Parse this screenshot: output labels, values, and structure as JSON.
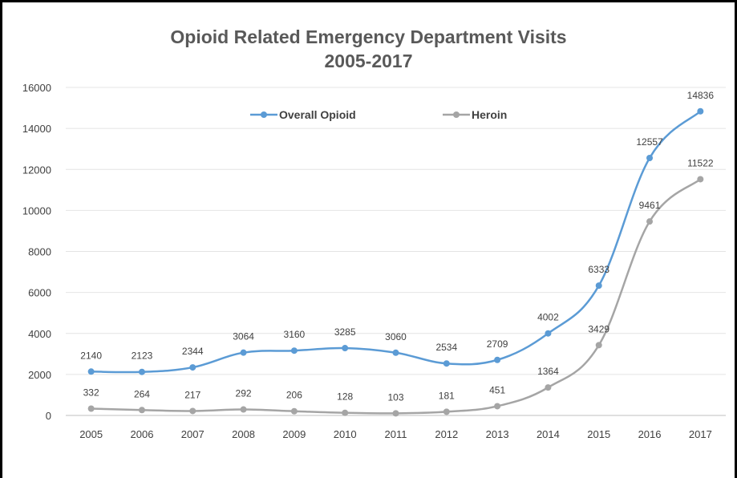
{
  "chart_data": {
    "type": "line",
    "title": "Opioid Related Emergency Department Visits",
    "subtitle": "2005-2017",
    "xlabel": "",
    "ylabel": "",
    "x": [
      "2005",
      "2006",
      "2007",
      "2008",
      "2009",
      "2010",
      "2011",
      "2012",
      "2013",
      "2014",
      "2015",
      "2016",
      "2017"
    ],
    "ylim": [
      0,
      16000
    ],
    "yticks": [
      0,
      2000,
      4000,
      6000,
      8000,
      10000,
      12000,
      14000,
      16000
    ],
    "grid": true,
    "legend_position": "top-center",
    "series": [
      {
        "name": "Overall Opioid",
        "color": "#5B9BD5",
        "values": [
          2140,
          2123,
          2344,
          3064,
          3160,
          3285,
          3060,
          2534,
          2709,
          4002,
          6333,
          12557,
          14836
        ]
      },
      {
        "name": "Heroin",
        "color": "#A5A5A5",
        "values": [
          332,
          264,
          217,
          292,
          206,
          128,
          103,
          181,
          451,
          1364,
          3429,
          9461,
          11522
        ]
      }
    ]
  }
}
